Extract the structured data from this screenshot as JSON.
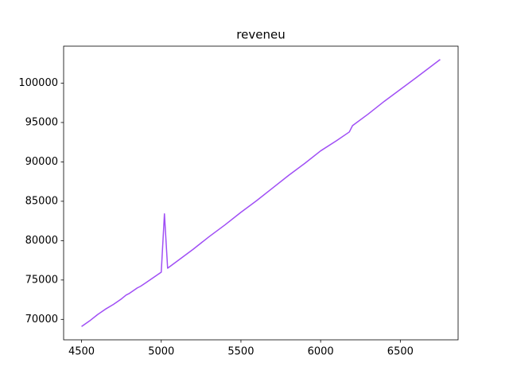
{
  "chart_data": {
    "type": "line",
    "title": "reveneu",
    "x": [
      4500,
      4550,
      4600,
      4650,
      4700,
      4750,
      4780,
      4800,
      4850,
      4870,
      4900,
      4950,
      5000,
      5020,
      5040,
      5100,
      5200,
      5300,
      5400,
      5500,
      5600,
      5700,
      5800,
      5900,
      6000,
      6100,
      6180,
      6200,
      6300,
      6400,
      6500,
      6600,
      6750
    ],
    "series": [
      {
        "color": "#a04ff5",
        "values": [
          69100,
          69800,
          70600,
          71300,
          71900,
          72600,
          73100,
          73300,
          74000,
          74200,
          74600,
          75300,
          76000,
          83400,
          76500,
          77400,
          78900,
          80500,
          82000,
          83600,
          85100,
          86700,
          88300,
          89800,
          91400,
          92700,
          93800,
          94600,
          96100,
          97700,
          99200,
          100700,
          103000
        ]
      }
    ],
    "xlim": [
      4387.5,
      6862.5
    ],
    "ylim": [
      67405,
      104695
    ],
    "xticks": [
      4500,
      5000,
      5500,
      6000,
      6500
    ],
    "yticks": [
      70000,
      75000,
      80000,
      85000,
      90000,
      95000,
      100000
    ],
    "grid": false
  }
}
